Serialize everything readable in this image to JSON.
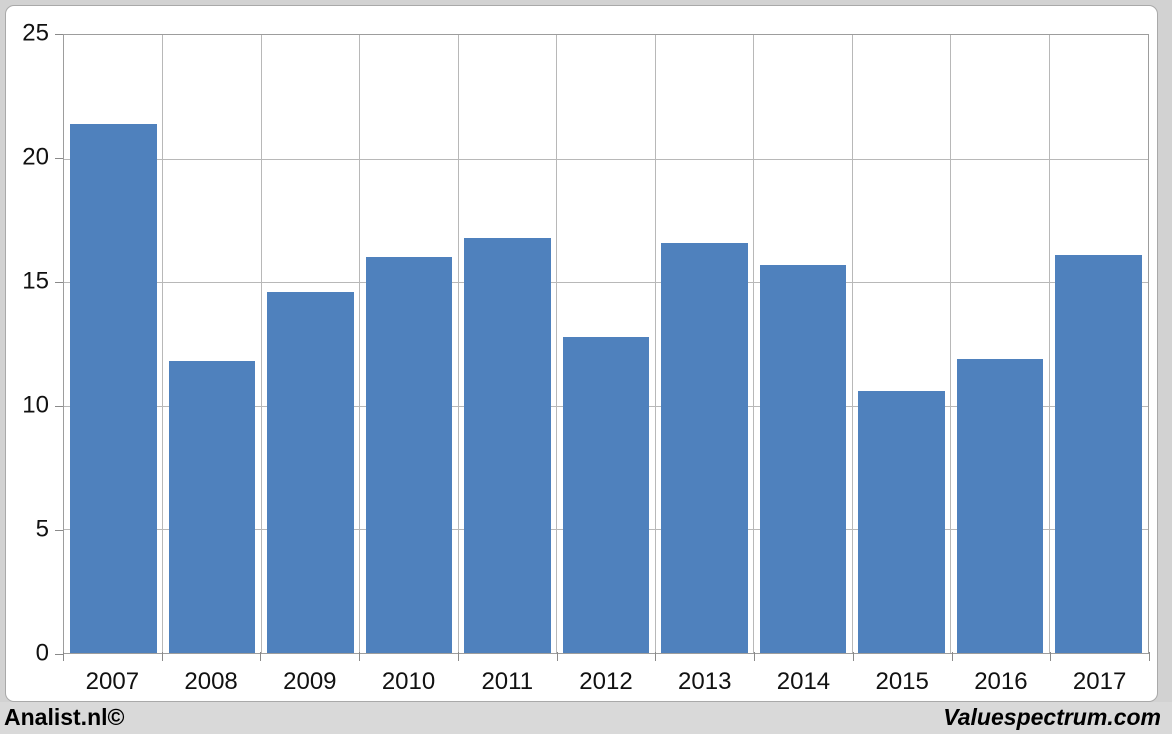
{
  "footer": {
    "left_brand": "Analist.nl©",
    "right_brand": "Valuespectrum.com"
  },
  "chart_data": {
    "type": "bar",
    "title": "",
    "xlabel": "",
    "ylabel": "",
    "categories": [
      "2007",
      "2008",
      "2009",
      "2010",
      "2011",
      "2012",
      "2013",
      "2014",
      "2015",
      "2016",
      "2017"
    ],
    "values": [
      21.4,
      11.8,
      14.6,
      16.0,
      16.8,
      12.8,
      16.6,
      15.7,
      10.6,
      11.9,
      16.1
    ],
    "ylim": [
      0,
      25
    ],
    "yticks": [
      0,
      5,
      10,
      15,
      20,
      25
    ],
    "grid": true,
    "legend": "none",
    "bar_color": "#4f81bd",
    "gridline_color": "#b8b8b8",
    "axis_color": "#9d9d9d",
    "label_color": "#111111",
    "plot_background": "#ffffff",
    "page_background": "#d2d2d2",
    "footer_background": "#d9d9d9"
  }
}
